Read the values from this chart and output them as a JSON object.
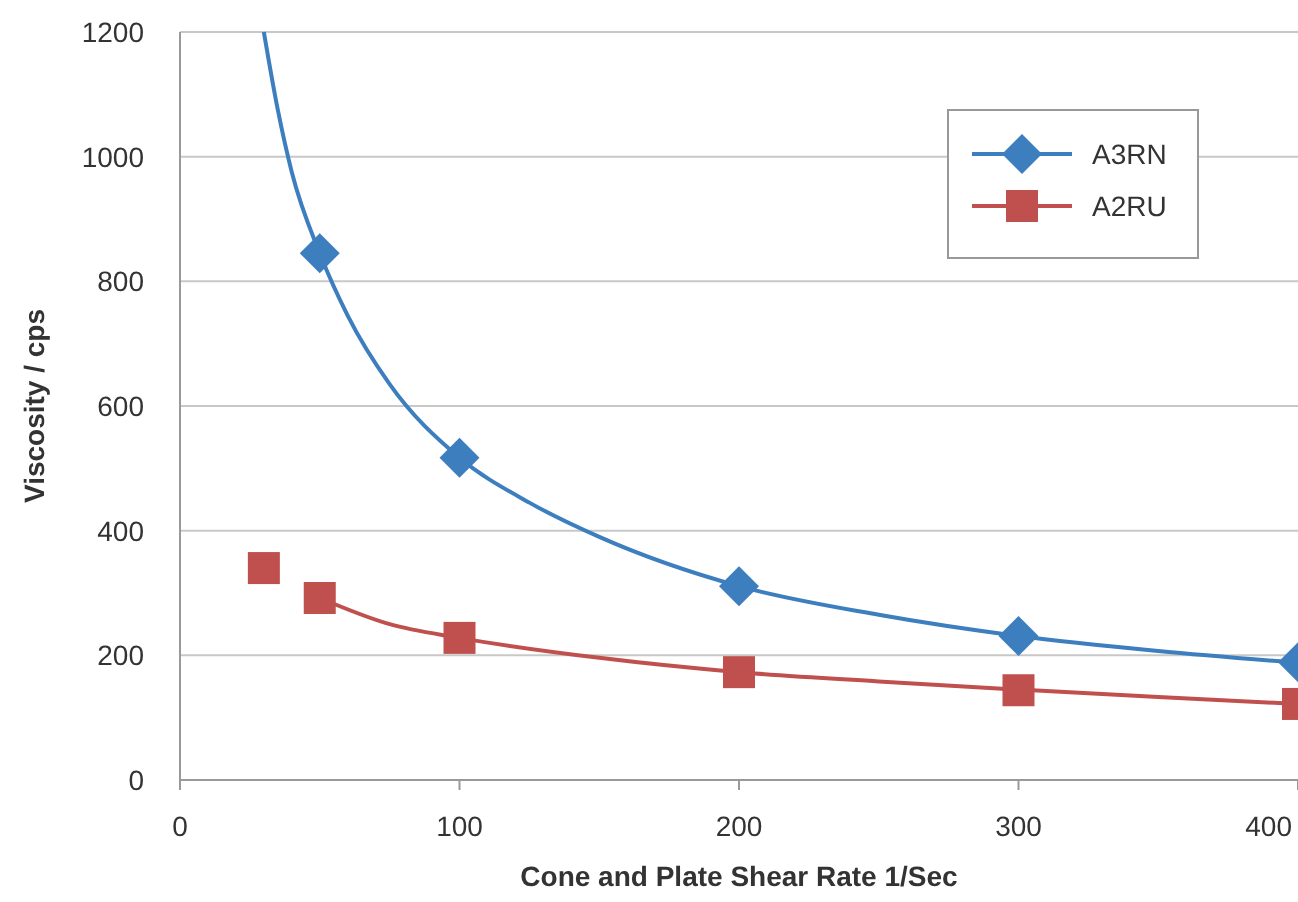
{
  "chart_data": {
    "type": "scatter",
    "xlabel": "Cone and Plate Shear Rate 1/Sec",
    "ylabel": "Viscosity /  cps",
    "xlim": [
      0,
      400
    ],
    "xticks": [
      0,
      100,
      200,
      300,
      400
    ],
    "ylim": [
      0,
      1200
    ],
    "yticks": [
      0,
      200,
      400,
      600,
      800,
      1000,
      1200
    ],
    "grid": "y",
    "legend": "top right",
    "series": [
      {
        "type": "line",
        "marker": "none",
        "color": "#3d7ebf",
        "x": [
          30,
          35,
          40,
          50,
          60,
          75,
          100,
          125,
          150,
          200,
          250,
          300,
          350,
          400
        ],
        "values": [
          1200,
          1075,
          975,
          845,
          745,
          635,
          517,
          445,
          390,
          311,
          265,
          231,
          207,
          188
        ]
      },
      {
        "type": "line",
        "marker": "none",
        "color": "#c0504d",
        "x": [
          50,
          75,
          100,
          150,
          200,
          250,
          300,
          350,
          400
        ],
        "values": [
          292,
          250,
          228,
          196,
          173,
          158,
          145,
          133,
          122
        ]
      },
      {
        "name": "A3RN",
        "marker": "diamond",
        "color": "#3d7ebf",
        "x": [
          50,
          100,
          200,
          300,
          400
        ],
        "values": [
          845,
          517,
          311,
          231,
          189
        ]
      },
      {
        "name": "A2RU",
        "marker": "square",
        "color": "#c0504d",
        "x": [
          30,
          50,
          100,
          200,
          300,
          400
        ],
        "values": [
          340,
          292,
          228,
          173,
          144,
          122
        ]
      }
    ]
  }
}
